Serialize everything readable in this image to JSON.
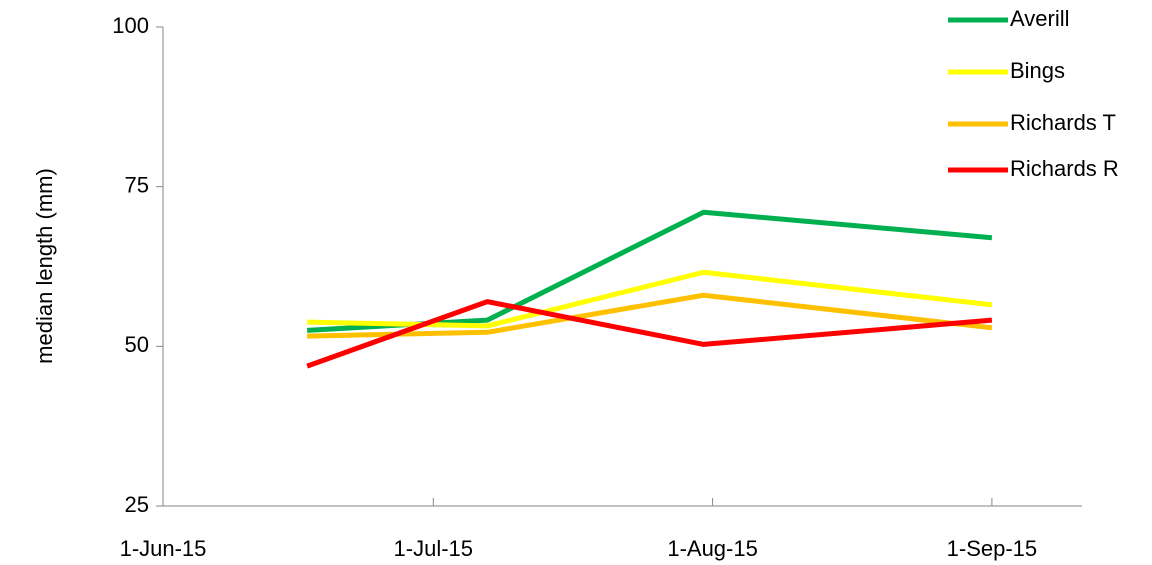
{
  "chart_data": {
    "type": "line",
    "y_label": "median length (mm)",
    "x": [
      "2015-06-17",
      "2015-07-07",
      "2015-07-31",
      "2015-09-01"
    ],
    "series": [
      {
        "name": "Averill",
        "color": "#00b050",
        "values": [
          52.5,
          54.1,
          71,
          67
        ]
      },
      {
        "name": "Bings",
        "color": "#ffff00",
        "values": [
          53.8,
          53.2,
          61.6,
          56.5
        ]
      },
      {
        "name": "Richards T",
        "color": "#ffc000",
        "values": [
          51.6,
          52.2,
          58,
          52.9
        ]
      },
      {
        "name": "Richards R",
        "color": "#ff0000",
        "values": [
          46.9,
          57,
          50.3,
          54.1
        ]
      }
    ],
    "xlim": [
      "2015-06-01",
      "2015-09-11"
    ],
    "xticks": [
      {
        "value": "2015-06-01",
        "label": "1-Jun-15"
      },
      {
        "value": "2015-07-01",
        "label": "1-Jul-15"
      },
      {
        "value": "2015-08-01",
        "label": "1-Aug-15"
      },
      {
        "value": "2015-09-01",
        "label": "1-Sep-15"
      }
    ],
    "ylim": [
      25,
      100
    ],
    "yticks": [
      25,
      50,
      75,
      100
    ],
    "grid": false,
    "legend": "top-right"
  }
}
